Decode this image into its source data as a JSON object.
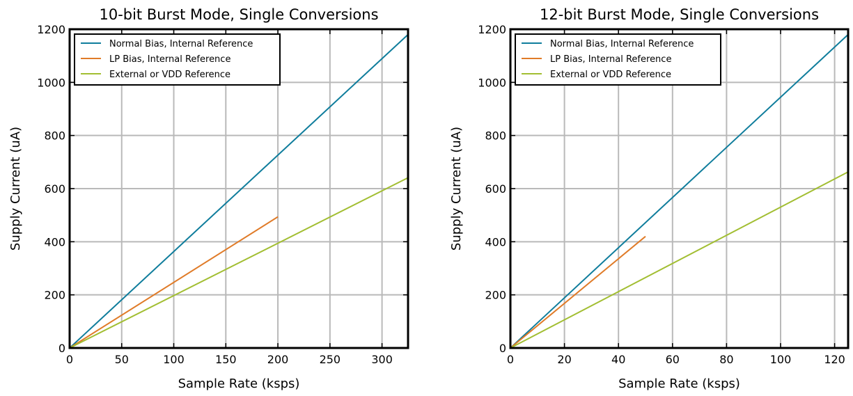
{
  "chart_data": [
    {
      "type": "line",
      "title": "10-bit Burst Mode, Single Conversions",
      "xlabel": "Sample Rate (ksps)",
      "ylabel": "Supply Current (uA)",
      "xlim": [
        0,
        325
      ],
      "ylim": [
        0,
        1200
      ],
      "xticks": [
        0,
        50,
        100,
        150,
        200,
        250,
        300
      ],
      "xtick_labels": [
        "0",
        "50",
        "100",
        "150",
        "200",
        "250",
        "300"
      ],
      "yticks": [
        0,
        200,
        400,
        600,
        800,
        1000,
        1200
      ],
      "ytick_labels": [
        "0",
        "200",
        "400",
        "600",
        "800",
        "1000",
        "1200"
      ],
      "grid": true,
      "legend_position": "top-left",
      "series": [
        {
          "name": "Normal Bias, Internal Reference",
          "color": "#0f7d9c",
          "x": [
            0,
            325
          ],
          "y": [
            0,
            1180
          ]
        },
        {
          "name": "LP Bias, Internal Reference",
          "color": "#e07b28",
          "x": [
            0,
            200
          ],
          "y": [
            0,
            494
          ]
        },
        {
          "name": "External or VDD Reference",
          "color": "#a2be32",
          "x": [
            0,
            325
          ],
          "y": [
            0,
            641
          ]
        }
      ]
    },
    {
      "type": "line",
      "title": "12-bit Burst Mode, Single Conversions",
      "xlabel": "Sample Rate (ksps)",
      "ylabel": "Supply Current (uA)",
      "xlim": [
        0,
        125
      ],
      "ylim": [
        0,
        1200
      ],
      "xticks": [
        0,
        20,
        40,
        60,
        80,
        100,
        120
      ],
      "xtick_labels": [
        "0",
        "20",
        "40",
        "60",
        "80",
        "100",
        "120"
      ],
      "yticks": [
        0,
        200,
        400,
        600,
        800,
        1000,
        1200
      ],
      "ytick_labels": [
        "0",
        "200",
        "400",
        "600",
        "800",
        "1000",
        "1200"
      ],
      "grid": true,
      "legend_position": "top-left",
      "series": [
        {
          "name": "Normal Bias, Internal Reference",
          "color": "#0f7d9c",
          "x": [
            0,
            125
          ],
          "y": [
            0,
            1180
          ]
        },
        {
          "name": "LP Bias, Internal Reference",
          "color": "#e07b28",
          "x": [
            0,
            50
          ],
          "y": [
            0,
            420
          ]
        },
        {
          "name": "External or VDD Reference",
          "color": "#a2be32",
          "x": [
            0,
            125
          ],
          "y": [
            0,
            663
          ]
        }
      ]
    }
  ]
}
